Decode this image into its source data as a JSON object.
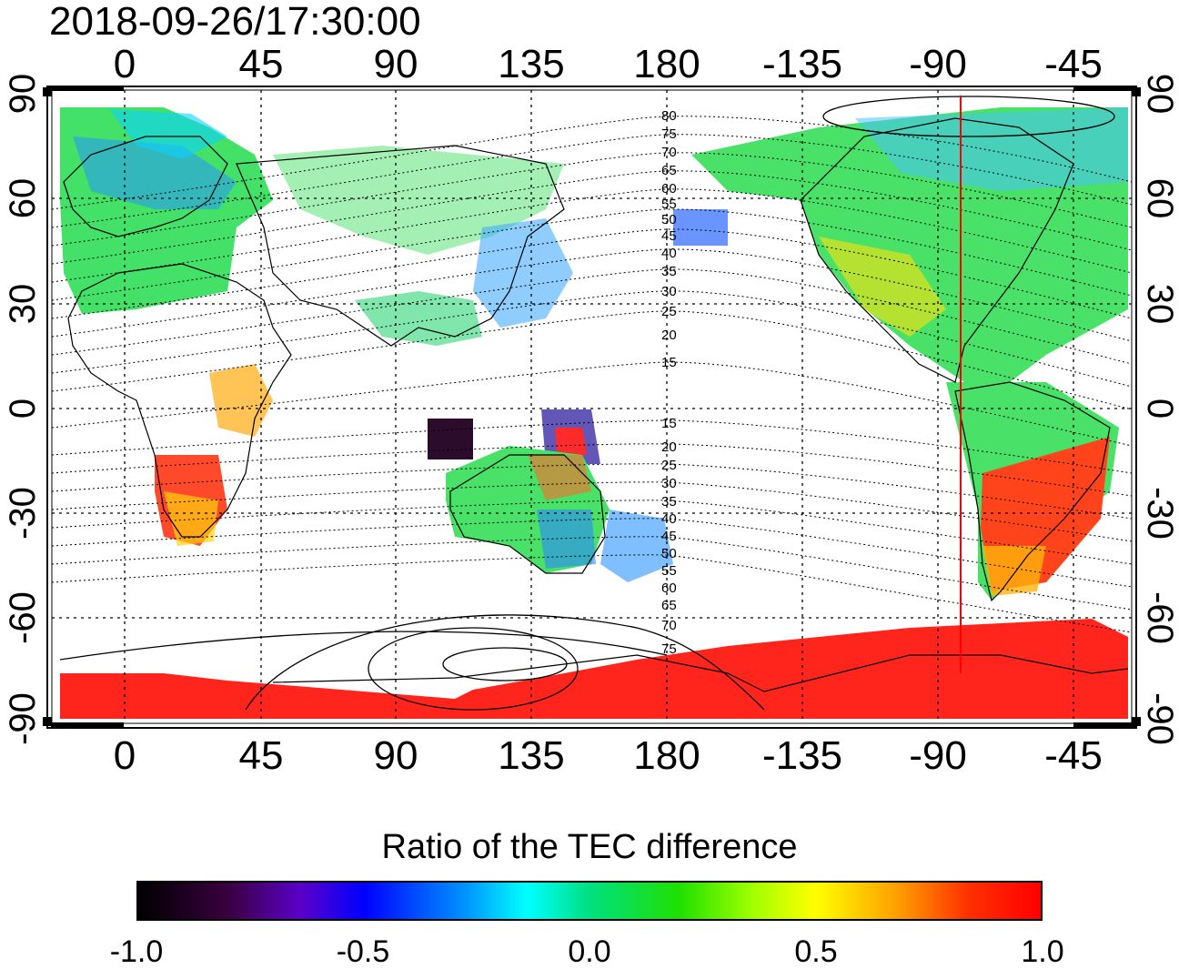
{
  "title": "2018-09-26/17:30:00",
  "map": {
    "top_lon_labels": [
      "0",
      "45",
      "90",
      "135",
      "180",
      "-135",
      "-90",
      "-45"
    ],
    "bottom_lon_labels": [
      "0",
      "45",
      "90",
      "135",
      "180",
      "-135",
      "-90",
      "-45"
    ],
    "left_lat_labels": [
      "90",
      "60",
      "30",
      "0",
      "-30",
      "-60",
      "-90"
    ],
    "right_lat_labels": [
      "90",
      "60",
      "30",
      "0",
      "-30",
      "-60",
      "-90"
    ],
    "north_mlat_labels": [
      "80",
      "75",
      "70",
      "65",
      "60",
      "55",
      "50",
      "45",
      "40",
      "35",
      "30",
      "25",
      "20",
      "15"
    ],
    "south_mlat_labels": [
      "15",
      "20",
      "25",
      "30",
      "35",
      "40",
      "45",
      "50",
      "55",
      "60",
      "65",
      "70",
      "75"
    ],
    "terminator_longitude": -82,
    "terminator_color": "#ff0000"
  },
  "colorbar": {
    "title": "Ratio of the TEC difference",
    "tick_labels": [
      "-1.0",
      "-0.5",
      "0.0",
      "0.5",
      "1.0"
    ],
    "range": [
      -1.0,
      1.0
    ]
  }
}
